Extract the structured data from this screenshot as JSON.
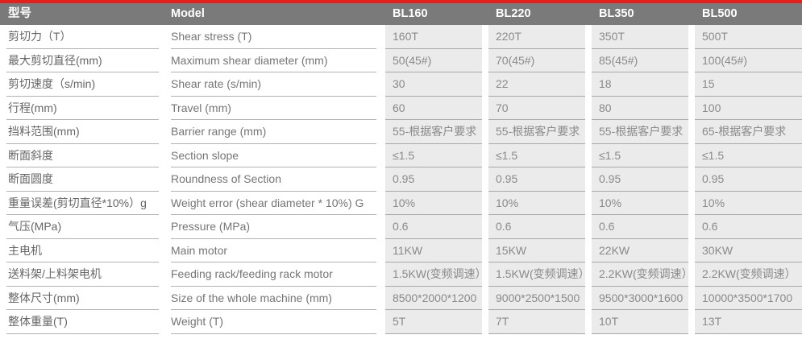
{
  "theme": {
    "accent_red": "#e2201c",
    "header_bg": "#7a7a7a",
    "header_text": "#ffffff",
    "value_column_bg": "#ebebeb"
  },
  "table": {
    "header": {
      "cn": "型号",
      "en": "Model",
      "models": [
        "BL160",
        "BL220",
        "BL350",
        "BL500"
      ]
    },
    "rows": [
      {
        "cn": "剪切力（T）",
        "en": "Shear stress (T)",
        "values": [
          "160T",
          "220T",
          "350T",
          "500T"
        ]
      },
      {
        "cn": "最大剪切直径(mm)",
        "en": "Maximum shear diameter (mm)",
        "values": [
          "50(45#)",
          "70(45#)",
          "85(45#)",
          "100(45#)"
        ]
      },
      {
        "cn": "剪切速度（s/min)",
        "en": "Shear rate (s/min)",
        "values": [
          "30",
          "22",
          "18",
          "15"
        ]
      },
      {
        "cn": "行程(mm)",
        "en": "Travel (mm)",
        "values": [
          "60",
          "70",
          "80",
          "100"
        ]
      },
      {
        "cn": "挡料范围(mm)",
        "en": "Barrier range (mm)",
        "values": [
          "55-根据客户要求",
          "55-根据客户要求",
          "55-根据客户要求",
          "65-根据客户要求"
        ]
      },
      {
        "cn": "断面斜度",
        "en": "Section slope",
        "values": [
          "≤1.5",
          "≤1.5",
          "≤1.5",
          "≤1.5"
        ]
      },
      {
        "cn": "断面圆度",
        "en": "Roundness of Section",
        "values": [
          "0.95",
          "0.95",
          "0.95",
          "0.95"
        ]
      },
      {
        "cn": "重量误差(剪切直径*10%）g",
        "en": "Weight error (shear diameter * 10%) G",
        "values": [
          "10%",
          "10%",
          "10%",
          "10%"
        ]
      },
      {
        "cn": "气压(MPa)",
        "en": "Pressure (MPa)",
        "values": [
          "0.6",
          "0.6",
          "0.6",
          "0.6"
        ]
      },
      {
        "cn": "主电机",
        "en": "Main motor",
        "values": [
          "11KW",
          "15KW",
          "22KW",
          "30KW"
        ]
      },
      {
        "cn": "送料架/上料架电机",
        "en": "Feeding rack/feeding rack motor",
        "values": [
          "1.5KW(变频调速）",
          "1.5KW(变频调速）",
          "2.2KW(变频调速）",
          "2.2KW(变频调速）"
        ]
      },
      {
        "cn": "整体尺寸(mm)",
        "en": "Size of the whole machine (mm)",
        "values": [
          "8500*2000*1200",
          "9000*2500*1500",
          "9500*3000*1600",
          "10000*3500*1700"
        ]
      },
      {
        "cn": "整体重量(T)",
        "en": "Weight (T)",
        "values": [
          "5T",
          "7T",
          "10T",
          "13T"
        ]
      }
    ]
  }
}
